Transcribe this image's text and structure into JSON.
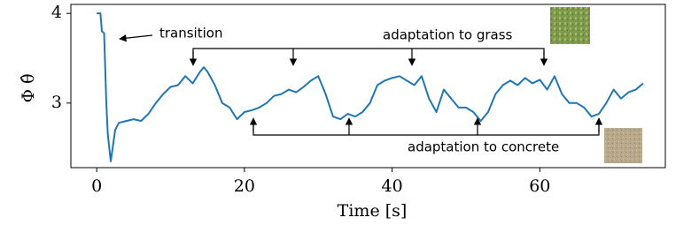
{
  "chart_data": {
    "type": "line",
    "xlabel": "Time [s]",
    "ylabel": "Φ θ̂",
    "x": [
      0,
      0.5,
      0.7,
      1,
      1.3,
      1.5,
      1.9,
      2.5,
      3,
      4,
      5,
      6,
      7,
      8,
      9,
      10,
      11,
      12,
      13,
      14,
      14.5,
      15,
      16,
      17,
      18,
      19,
      20,
      21,
      22,
      23,
      24,
      25,
      26,
      27,
      28,
      29,
      30,
      31,
      32,
      33,
      34,
      35,
      36,
      37,
      38,
      39,
      40,
      41,
      42,
      43,
      44,
      45,
      46,
      47,
      48,
      49,
      50,
      51,
      52,
      53,
      54,
      55,
      56,
      57,
      58,
      59,
      60,
      61,
      62,
      63,
      64,
      65,
      66,
      67,
      68,
      69,
      70,
      71,
      72,
      73,
      74
    ],
    "values": [
      4.0,
      4.0,
      3.8,
      3.78,
      3.0,
      2.65,
      2.35,
      2.7,
      2.78,
      2.8,
      2.82,
      2.8,
      2.88,
      3.0,
      3.1,
      3.18,
      3.2,
      3.3,
      3.22,
      3.35,
      3.4,
      3.35,
      3.2,
      3.0,
      2.95,
      2.82,
      2.9,
      2.92,
      2.95,
      3.0,
      3.08,
      3.1,
      3.15,
      3.12,
      3.18,
      3.25,
      3.3,
      3.1,
      2.85,
      2.82,
      2.88,
      2.85,
      2.9,
      3.0,
      3.2,
      3.25,
      3.28,
      3.3,
      3.25,
      3.2,
      3.3,
      3.05,
      2.9,
      3.15,
      3.05,
      2.95,
      2.95,
      2.9,
      2.8,
      2.9,
      3.1,
      3.2,
      3.25,
      3.2,
      3.28,
      3.22,
      3.26,
      3.15,
      3.3,
      3.1,
      3.0,
      3.0,
      2.95,
      2.85,
      2.88,
      3.0,
      3.15,
      3.05,
      3.12,
      3.15,
      3.22
    ],
    "color": "#1f77b4",
    "xlim": [
      -3.5,
      77
    ],
    "ylim": [
      2.28,
      4.1
    ],
    "xticks": [
      0,
      20,
      40,
      60
    ],
    "yticks": [
      3,
      4
    ],
    "grid": false,
    "annotations": [
      "transition",
      "adaptation to grass",
      "adaptation to concrete"
    ]
  }
}
